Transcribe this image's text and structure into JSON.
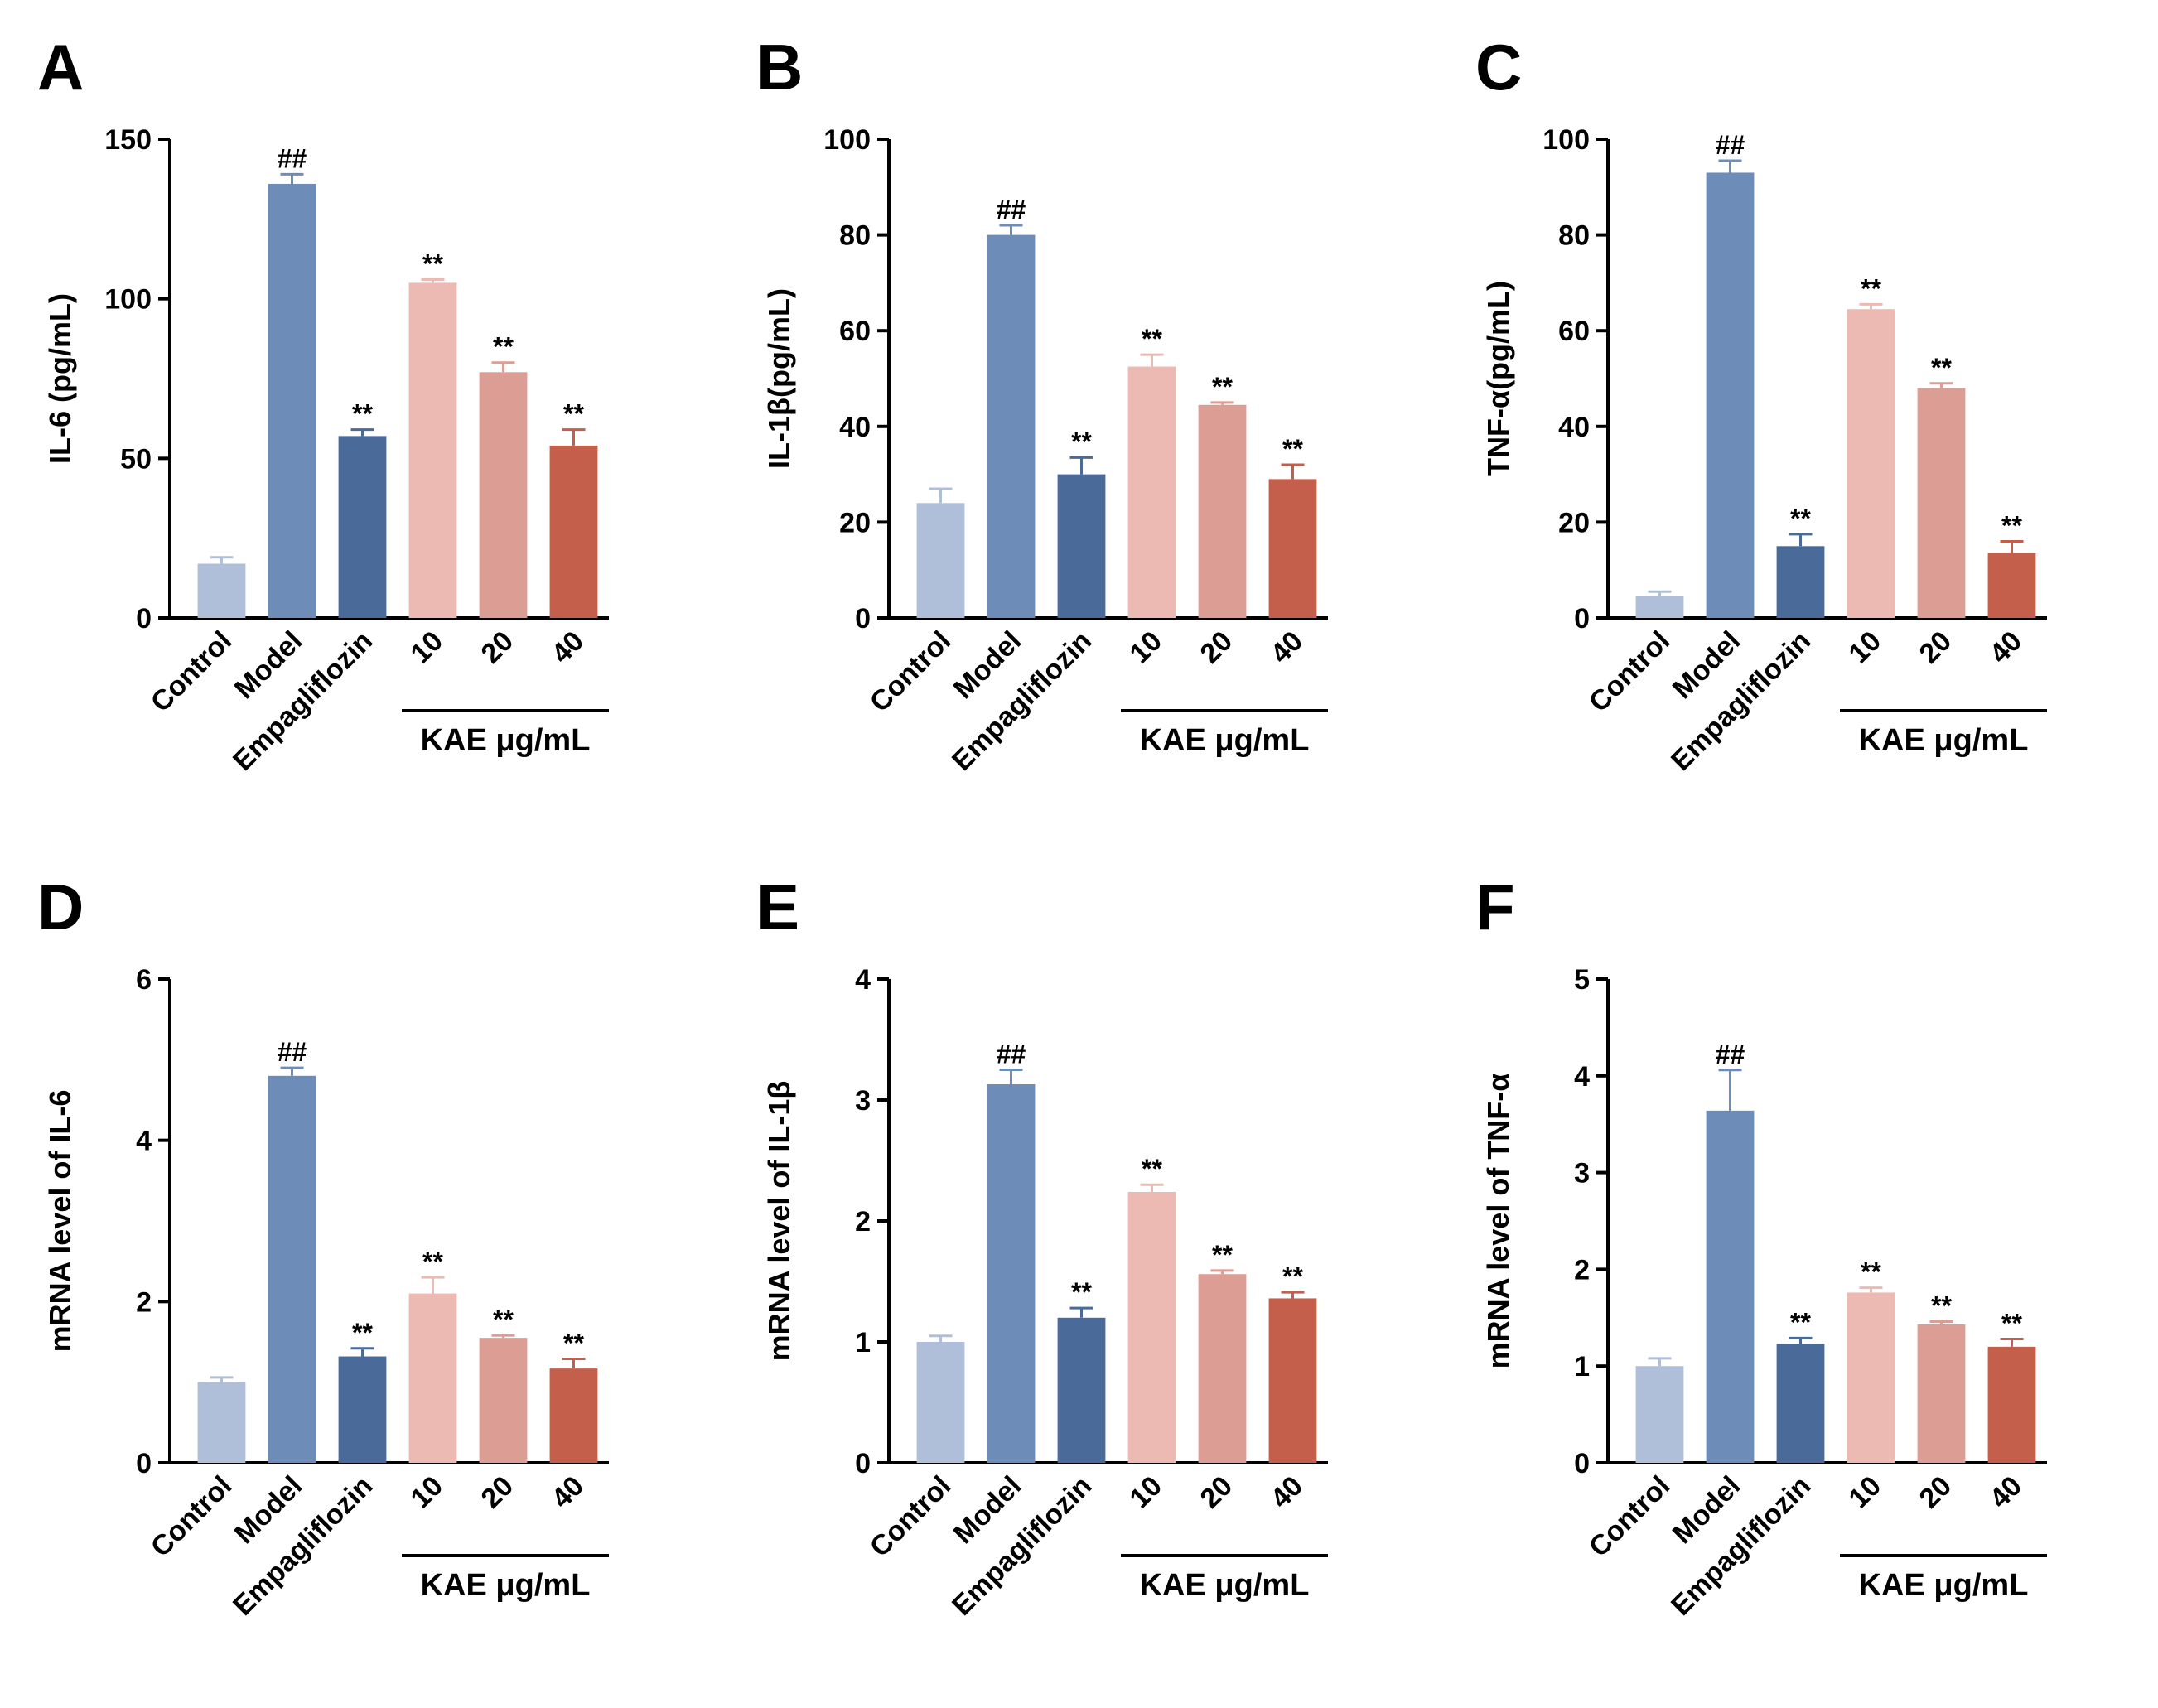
{
  "chart_data": [
    {
      "type": "bar",
      "panel": "A",
      "ylabel": "IL-6 (pg/mL)",
      "group_label": "KAE μg/mL",
      "categories": [
        "Control",
        "Model",
        "Empagliflozin",
        "10",
        "20",
        "40"
      ],
      "values": [
        17,
        136,
        57,
        105,
        77,
        54
      ],
      "errors": [
        2,
        3,
        2,
        1,
        3,
        5
      ],
      "annotations": [
        null,
        "##",
        "**",
        "**",
        "**",
        "**"
      ],
      "colors": [
        "#b0bfd9",
        "#6e8cb8",
        "#4a6a9a",
        "#ecbab3",
        "#dc9d94",
        "#c45f4b"
      ],
      "ylim": [
        0,
        150
      ],
      "yticks": [
        0,
        50,
        100,
        150
      ]
    },
    {
      "type": "bar",
      "panel": "B",
      "ylabel": "IL-1β(pg/mL)",
      "group_label": "KAE μg/mL",
      "categories": [
        "Control",
        "Model",
        "Empagliflozin",
        "10",
        "20",
        "40"
      ],
      "values": [
        24,
        80,
        30,
        52.5,
        44.5,
        29
      ],
      "errors": [
        3,
        2,
        3.5,
        2.5,
        0.5,
        3
      ],
      "annotations": [
        null,
        "##",
        "**",
        "**",
        "**",
        "**"
      ],
      "colors": [
        "#b0bfd9",
        "#6e8cb8",
        "#4a6a9a",
        "#ecbab3",
        "#dc9d94",
        "#c45f4b"
      ],
      "ylim": [
        0,
        100
      ],
      "yticks": [
        0,
        20,
        40,
        60,
        80,
        100
      ]
    },
    {
      "type": "bar",
      "panel": "C",
      "ylabel": "TNF-α(pg/mL)",
      "group_label": "KAE μg/mL",
      "categories": [
        "Control",
        "Model",
        "Empagliflozin",
        "10",
        "20",
        "40"
      ],
      "values": [
        4.5,
        93,
        15,
        64.5,
        48,
        13.5
      ],
      "errors": [
        1,
        2.5,
        2.5,
        1,
        1,
        2.5
      ],
      "annotations": [
        null,
        "##",
        "**",
        "**",
        "**",
        "**"
      ],
      "colors": [
        "#b0bfd9",
        "#6e8cb8",
        "#4a6a9a",
        "#ecbab3",
        "#dc9d94",
        "#c45f4b"
      ],
      "ylim": [
        0,
        100
      ],
      "yticks": [
        0,
        20,
        40,
        60,
        80,
        100
      ]
    },
    {
      "type": "bar",
      "panel": "D",
      "ylabel": "mRNA level of IL-6",
      "group_label": "KAE μg/mL",
      "categories": [
        "Control",
        "Model",
        "Empagliflozin",
        "10",
        "20",
        "40"
      ],
      "values": [
        1.0,
        4.8,
        1.32,
        2.1,
        1.55,
        1.17
      ],
      "errors": [
        0.06,
        0.1,
        0.1,
        0.2,
        0.03,
        0.12
      ],
      "annotations": [
        null,
        "##",
        "**",
        "**",
        "**",
        "**"
      ],
      "colors": [
        "#b0bfd9",
        "#6e8cb8",
        "#4a6a9a",
        "#ecbab3",
        "#dc9d94",
        "#c45f4b"
      ],
      "ylim": [
        0,
        6
      ],
      "yticks": [
        0,
        2,
        4,
        6
      ]
    },
    {
      "type": "bar",
      "panel": "E",
      "ylabel": "mRNA level of IL-1β",
      "group_label": "KAE μg/mL",
      "categories": [
        "Control",
        "Model",
        "Empagliflozin",
        "10",
        "20",
        "40"
      ],
      "values": [
        1.0,
        3.13,
        1.2,
        2.24,
        1.56,
        1.36
      ],
      "errors": [
        0.05,
        0.12,
        0.08,
        0.06,
        0.03,
        0.05
      ],
      "annotations": [
        null,
        "##",
        "**",
        "**",
        "**",
        "**"
      ],
      "colors": [
        "#b0bfd9",
        "#6e8cb8",
        "#4a6a9a",
        "#ecbab3",
        "#dc9d94",
        "#c45f4b"
      ],
      "ylim": [
        0,
        4
      ],
      "yticks": [
        0,
        1,
        2,
        3,
        4
      ]
    },
    {
      "type": "bar",
      "panel": "F",
      "ylabel": "mRNA level of TNF-α",
      "group_label": "KAE μg/mL",
      "categories": [
        "Control",
        "Model",
        "Empagliflozin",
        "10",
        "20",
        "40"
      ],
      "values": [
        1.0,
        3.64,
        1.23,
        1.76,
        1.43,
        1.2
      ],
      "errors": [
        0.08,
        0.42,
        0.06,
        0.05,
        0.03,
        0.08
      ],
      "annotations": [
        null,
        "##",
        "**",
        "**",
        "**",
        "**"
      ],
      "colors": [
        "#b0bfd9",
        "#6e8cb8",
        "#4a6a9a",
        "#ecbab3",
        "#dc9d94",
        "#c45f4b"
      ],
      "ylim": [
        0,
        5
      ],
      "yticks": [
        0,
        1,
        2,
        3,
        4,
        5
      ]
    }
  ]
}
